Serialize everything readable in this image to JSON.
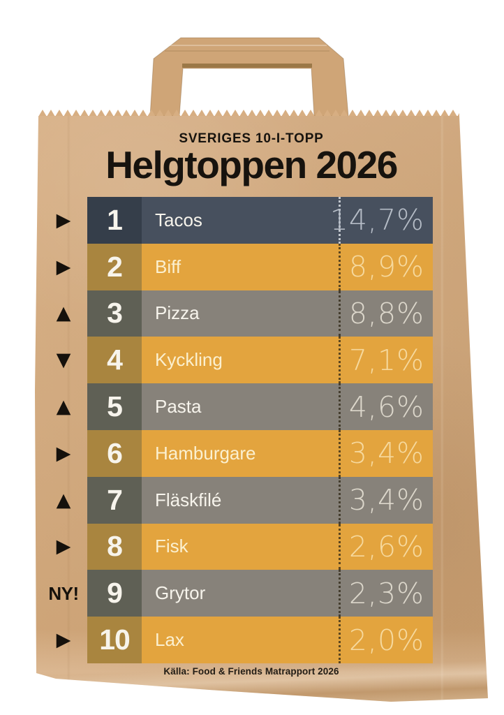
{
  "header": {
    "kicker": "SVERIGES 10-I-TOPP",
    "title": "Helgtoppen 2026"
  },
  "ranking": {
    "rows": [
      {
        "rank": "1",
        "label": "Tacos",
        "value": "14,7%",
        "trend": "same",
        "trend_glyph": "▶"
      },
      {
        "rank": "2",
        "label": "Biff",
        "value": "8,9%",
        "trend": "same",
        "trend_glyph": "▶"
      },
      {
        "rank": "3",
        "label": "Pizza",
        "value": "8,8%",
        "trend": "up",
        "trend_glyph": "▲"
      },
      {
        "rank": "4",
        "label": "Kyckling",
        "value": "7,1%",
        "trend": "down",
        "trend_glyph": "▼"
      },
      {
        "rank": "5",
        "label": "Pasta",
        "value": "4,6%",
        "trend": "up",
        "trend_glyph": "▲"
      },
      {
        "rank": "6",
        "label": "Hamburgare",
        "value": "3,4%",
        "trend": "same",
        "trend_glyph": "▶"
      },
      {
        "rank": "7",
        "label": "Fläskfilé",
        "value": "3,4%",
        "trend": "up",
        "trend_glyph": "▲"
      },
      {
        "rank": "8",
        "label": "Fisk",
        "value": "2,6%",
        "trend": "same",
        "trend_glyph": "▶"
      },
      {
        "rank": "9",
        "label": "Grytor",
        "value": "2,3%",
        "trend": "new",
        "trend_glyph": "NY!"
      },
      {
        "rank": "10",
        "label": "Lax",
        "value": "2,0%",
        "trend": "same",
        "trend_glyph": "▶"
      }
    ]
  },
  "footer": {
    "source": "Källa: Food & Friends Matrapport 2026"
  },
  "chart_data": {
    "type": "table",
    "title": "Helgtoppen 2026",
    "subtitle": "SVERIGES 10-I-TOPP",
    "categories": [
      "Tacos",
      "Biff",
      "Pizza",
      "Kyckling",
      "Pasta",
      "Hamburgare",
      "Fläskfilé",
      "Fisk",
      "Grytor",
      "Lax"
    ],
    "values": [
      14.7,
      8.9,
      8.8,
      7.1,
      4.6,
      3.4,
      3.4,
      2.6,
      2.3,
      2.0
    ],
    "value_labels": [
      "14,7%",
      "8,9%",
      "8,8%",
      "7,1%",
      "4,6%",
      "3,4%",
      "3,4%",
      "2,6%",
      "2,3%",
      "2,0%"
    ],
    "ranks": [
      1,
      2,
      3,
      4,
      5,
      6,
      7,
      8,
      9,
      10
    ],
    "trends": [
      "same",
      "same",
      "up",
      "down",
      "up",
      "same",
      "up",
      "same",
      "new",
      "same"
    ],
    "source": "Källa: Food & Friends Matrapport 2026"
  },
  "colors": {
    "page_bg": "#ffffff",
    "kraft": "#d3a87b",
    "kraft_light": "#ddb68e",
    "kraft_dark": "#c79c6c",
    "ink": "#17130e",
    "row_dark_bg": "#47505e",
    "row_dark_band": "#353e4a",
    "row_dark_pct": "#b5bcc6",
    "row_yellow_bg": "#e3a43e",
    "row_yellow_band": "#a9853f",
    "row_yellow_pct": "#f6d99e",
    "row_gray_bg": "#87827a",
    "row_gray_band": "#5f6055",
    "row_gray_pct": "#dcd7cb",
    "row_text": "#f7f4ec"
  }
}
